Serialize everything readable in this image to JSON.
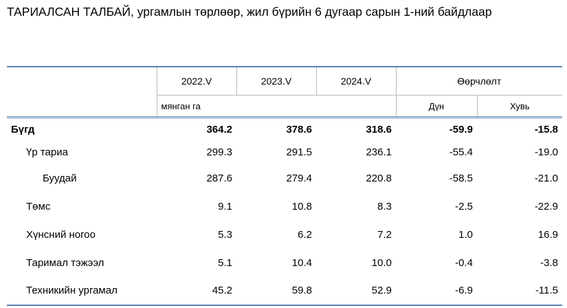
{
  "title": "ТАРИАЛСАН ТАЛБАЙ, ургамлын төрлөөр, жил бүрийн 6 дугаар сарын 1-ний байдлаар",
  "table": {
    "headers": [
      "2022.V",
      "2023.V",
      "2024.V",
      "Өөрчлөлт"
    ],
    "unit": "мянган га",
    "subheaders": [
      "Дүн",
      "Хувь"
    ],
    "rows": [
      [
        "Бүгд",
        "364.2",
        "378.6",
        "318.6",
        "-59.9",
        "-15.8"
      ],
      [
        "Үр тариа",
        "299.3",
        "291.5",
        "236.1",
        "-55.4",
        "-19.0"
      ],
      [
        "Буудай",
        "287.6",
        "279.4",
        "220.8",
        "-58.5",
        "-21.0"
      ],
      [
        "Төмс",
        "9.1",
        "10.8",
        "8.3",
        "-2.5",
        "-22.9"
      ],
      [
        "Хүнсний ногоо",
        "5.3",
        "6.2",
        "7.2",
        "1.0",
        "16.9"
      ],
      [
        "Таримал тэжээл",
        "5.1",
        "10.4",
        "10.0",
        "-0.4",
        "-3.8"
      ],
      [
        "Техникийн ургамал",
        "45.2",
        "59.8",
        "52.9",
        "-6.9",
        "-11.5"
      ]
    ]
  }
}
